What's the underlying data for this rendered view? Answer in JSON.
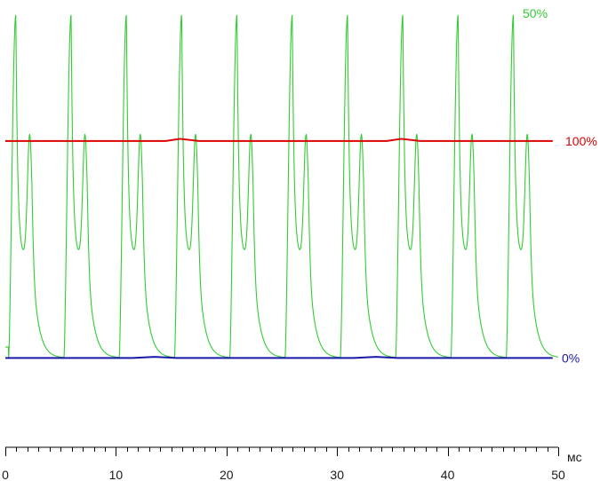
{
  "chart_data": {
    "type": "line",
    "title": "",
    "xlabel": "",
    "ylabel": "",
    "x_unit": "мс",
    "xlim": [
      0,
      50
    ],
    "ylim": [
      -0.15,
      1.65
    ],
    "x_ticks": [
      0,
      10,
      20,
      30,
      40,
      50
    ],
    "x_tick_labels": [
      "0",
      "10",
      "20",
      "30",
      "40",
      "50"
    ],
    "grid": false,
    "legend": "none",
    "series": [
      {
        "name": "50%",
        "color": "#33cc33",
        "pulse_period_ms": 5.0,
        "pulse_starts_ms": [
          0.3,
          5.3,
          10.3,
          15.3,
          20.3,
          25.3,
          30.3,
          35.3,
          40.3,
          45.3
        ],
        "min_level": 0.0,
        "main_peak_level": 1.58,
        "secondary_peak_level": 1.0,
        "trough_level": 0.47,
        "end_ms": 50.0
      },
      {
        "name": "100%",
        "color": "#dd0000",
        "level": 1.0,
        "x": [
          0,
          14.5,
          15.8,
          17.5,
          34.5,
          35.8,
          37.5,
          49.5
        ],
        "y": [
          1.0,
          1.0,
          1.01,
          1.0,
          1.0,
          1.01,
          1.0,
          1.0
        ],
        "end_ms": 49.5
      },
      {
        "name": "0%",
        "color": "#1a1aaa",
        "level": 0.0,
        "x": [
          0,
          11.5,
          13.5,
          15.5,
          31.5,
          33.5,
          35.5,
          49.5
        ],
        "y": [
          0.0,
          0.0,
          0.005,
          0.0,
          0.0,
          0.005,
          0.0,
          0.0
        ],
        "end_ms": 49.5
      }
    ]
  }
}
